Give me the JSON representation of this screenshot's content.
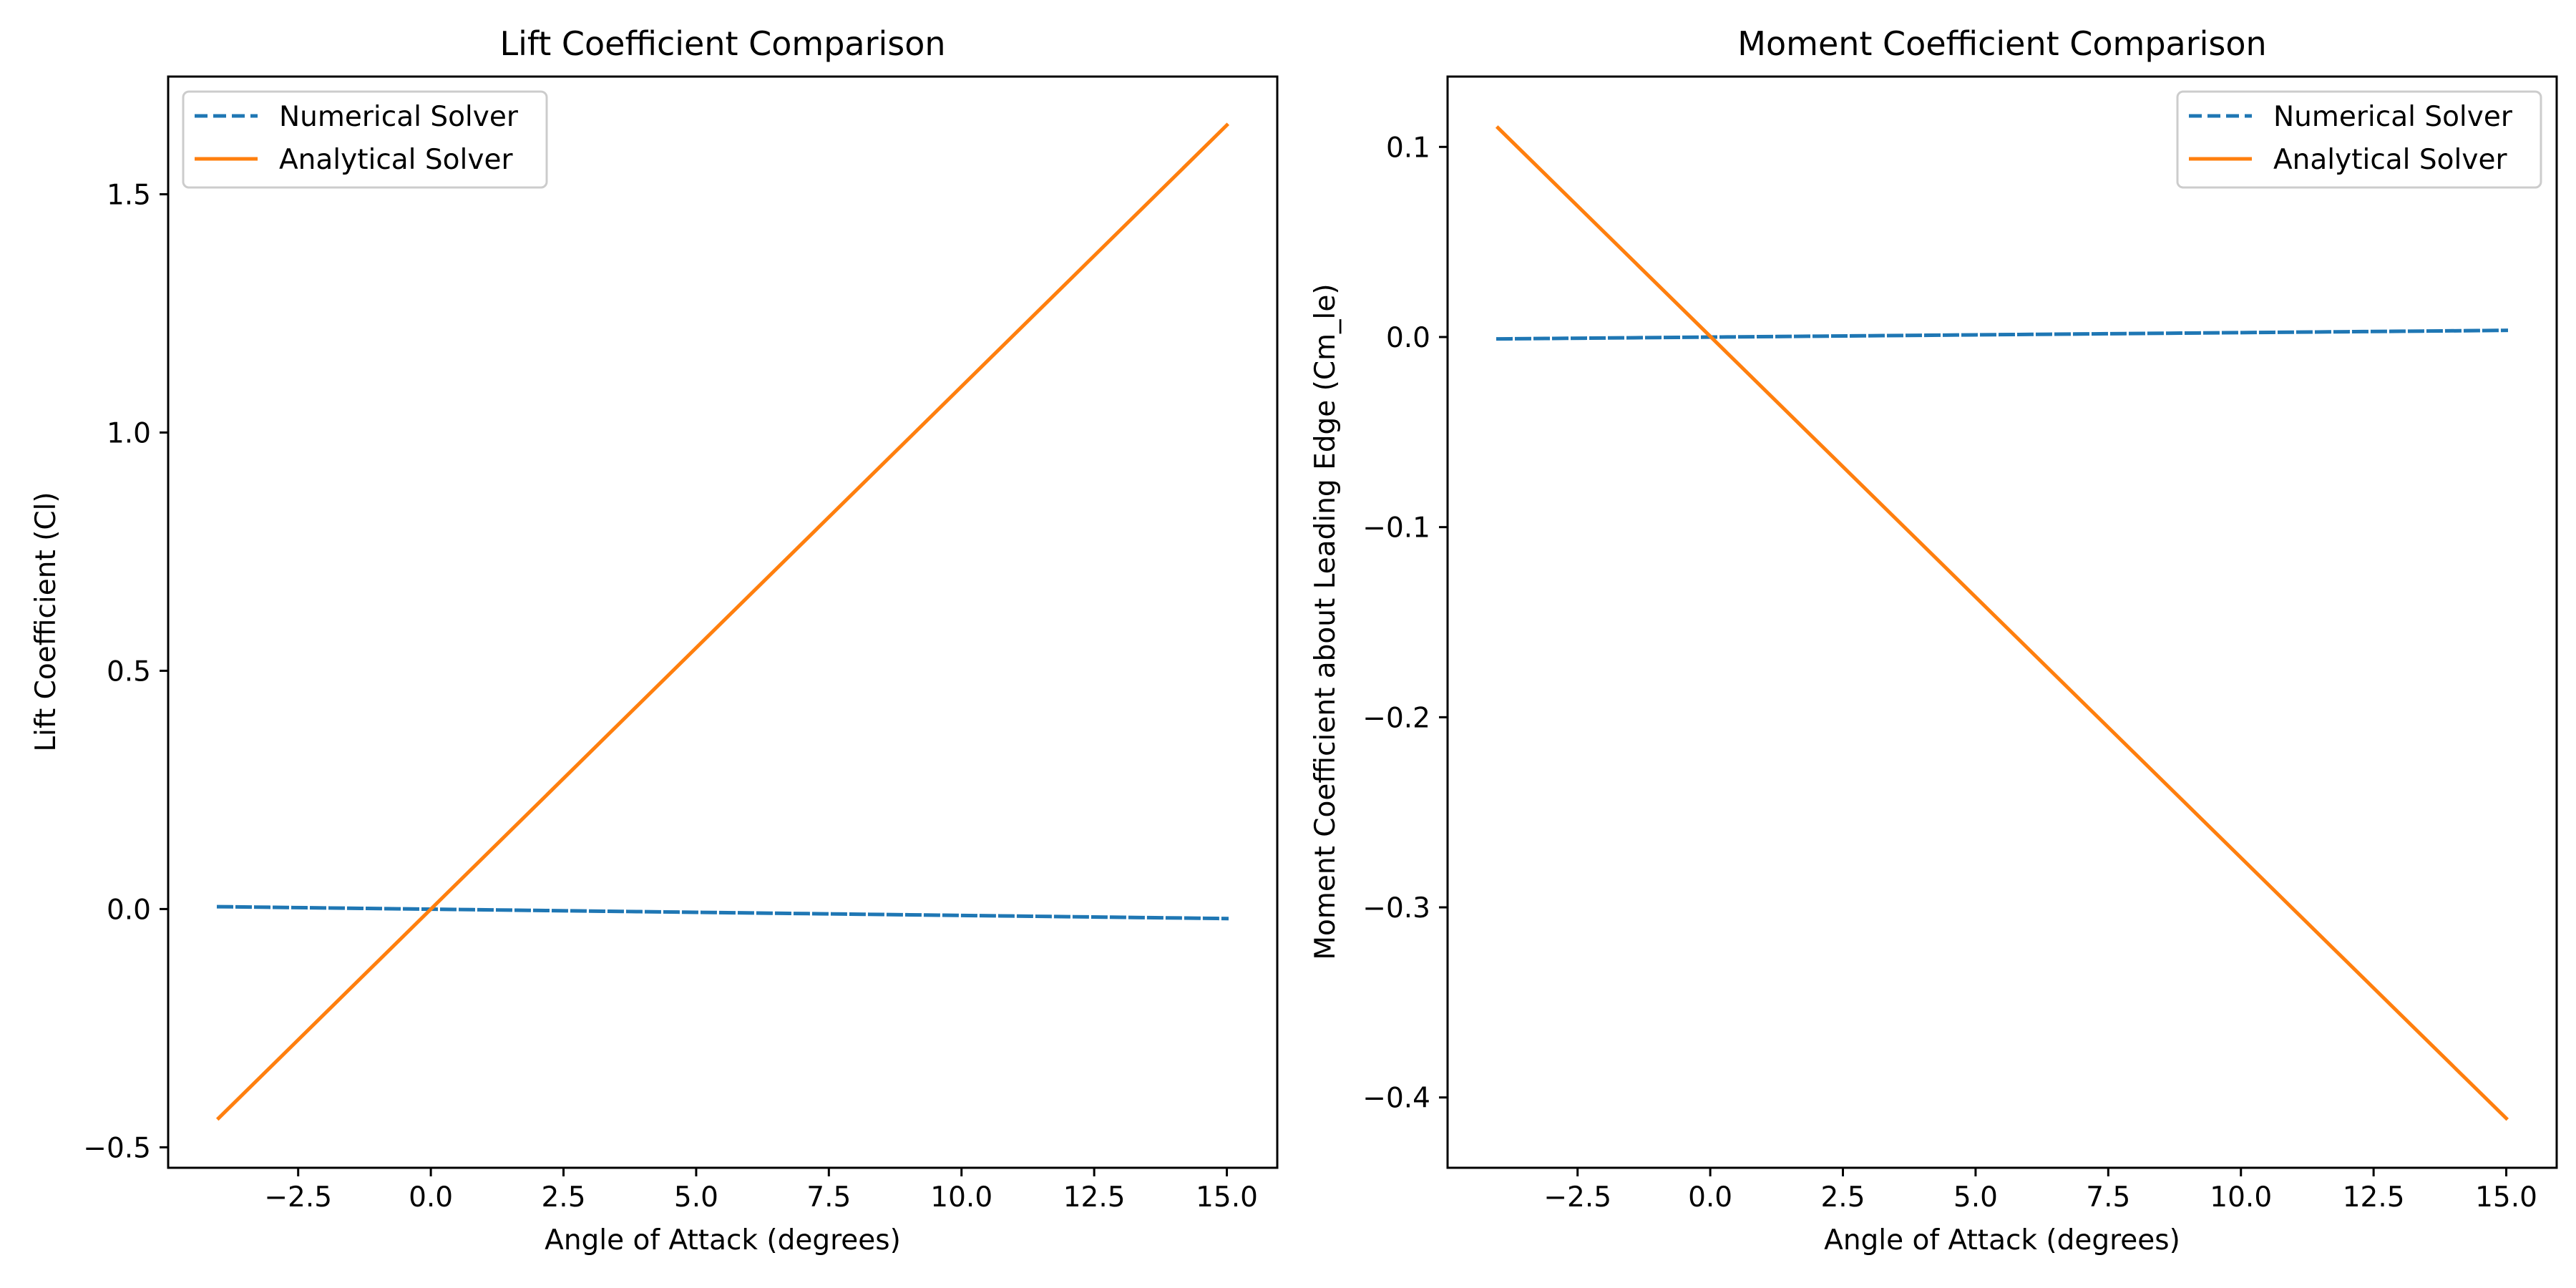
{
  "chart_data": [
    {
      "type": "line",
      "title": "Lift Coefficient Comparison",
      "xlabel": "Angle of Attack (degrees)",
      "ylabel": "Lift Coefficient (Cl)",
      "xlim": [
        -4.95,
        15.95
      ],
      "ylim": [
        -0.543,
        1.747
      ],
      "xticks": [
        "−2.5",
        "0.0",
        "2.5",
        "5.0",
        "7.5",
        "10.0",
        "12.5",
        "15.0"
      ],
      "xtick_values": [
        -2.5,
        0,
        2.5,
        5,
        7.5,
        10,
        12.5,
        15
      ],
      "yticks": [
        "−0.5",
        "0.0",
        "0.5",
        "1.0",
        "1.5"
      ],
      "ytick_values": [
        -0.5,
        0,
        0.5,
        1,
        1.5
      ],
      "grid": false,
      "legend": "upper left",
      "series": [
        {
          "name": "Numerical Solver",
          "color": "#1f77b4",
          "style": "dashed",
          "x": [
            -4,
            15
          ],
          "y": [
            0.005,
            -0.02
          ]
        },
        {
          "name": "Analytical Solver",
          "color": "#ff7f0e",
          "style": "solid",
          "x": [
            -4,
            15
          ],
          "y": [
            -0.439,
            1.645
          ]
        }
      ]
    },
    {
      "type": "line",
      "title": "Moment Coefficient Comparison",
      "xlabel": "Angle of Attack (degrees)",
      "ylabel": "Moment Coefficient about Leading Edge (Cm_le)",
      "xlim": [
        -4.95,
        15.95
      ],
      "ylim": [
        -0.437,
        0.137
      ],
      "xticks": [
        "−2.5",
        "0.0",
        "2.5",
        "5.0",
        "7.5",
        "10.0",
        "12.5",
        "15.0"
      ],
      "xtick_values": [
        -2.5,
        0,
        2.5,
        5,
        7.5,
        10,
        12.5,
        15
      ],
      "yticks": [
        "−0.4",
        "−0.3",
        "−0.2",
        "−0.1",
        "0.0",
        "0.1"
      ],
      "ytick_values": [
        -0.4,
        -0.3,
        -0.2,
        -0.1,
        0,
        0.1
      ],
      "grid": false,
      "legend": "upper right",
      "series": [
        {
          "name": "Numerical Solver",
          "color": "#1f77b4",
          "style": "dashed",
          "x": [
            -4,
            15
          ],
          "y": [
            -0.001,
            0.0035
          ]
        },
        {
          "name": "Analytical Solver",
          "color": "#ff7f0e",
          "style": "solid",
          "x": [
            -4,
            15
          ],
          "y": [
            0.11,
            -0.411
          ]
        }
      ]
    }
  ]
}
